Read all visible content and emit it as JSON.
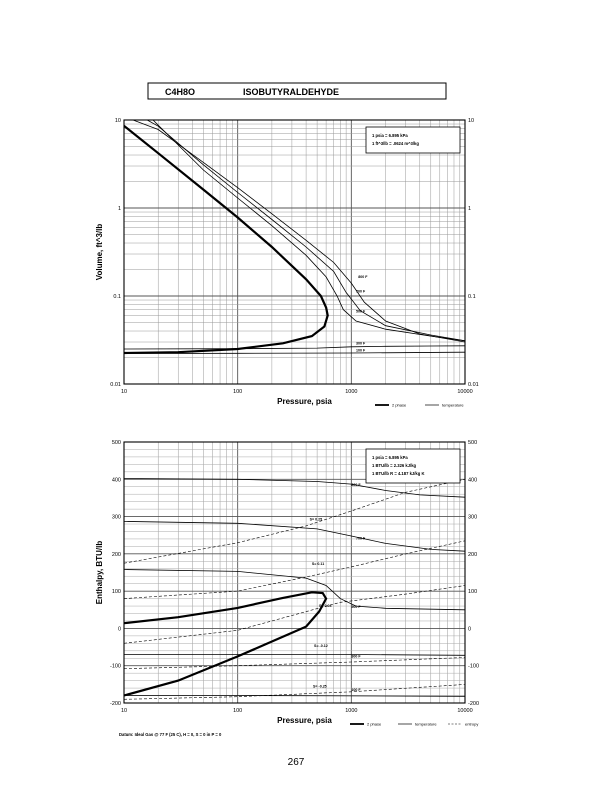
{
  "header": {
    "formula": "C4H8O",
    "name": "ISOBUTYRALDEHYDE"
  },
  "page_number": "267",
  "colors": {
    "ink": "#000000",
    "grid": "#8a8a8a",
    "frame": "#000000"
  },
  "chart_data": [
    {
      "type": "line",
      "xscale": "log",
      "yscale": "log",
      "xlim": [
        10,
        10000
      ],
      "ylim": [
        0.01,
        10
      ],
      "xlabel": "Pressure,  psia",
      "ylabel": "Volume, ft^3/lb",
      "x_ticks": [
        "10",
        "100",
        "1000",
        "10000"
      ],
      "y_ticks": [
        "0.01",
        "0.1",
        "1",
        "10"
      ],
      "note_lines": [
        "1 psia  =  6.895 kPa",
        "1 ft^3/lb  =  .0624 m^3/kg"
      ],
      "legend": [
        "2 phase",
        "temperature"
      ],
      "grid": true,
      "series": [
        {
          "kind": "2 phase",
          "points": [
            [
              10,
              8.6
            ],
            [
              20,
              4.2
            ],
            [
              50,
              1.62
            ],
            [
              100,
              0.78
            ],
            [
              200,
              0.36
            ],
            [
              400,
              0.155
            ],
            [
              540,
              0.1
            ],
            [
              600,
              0.074
            ],
            [
              620,
              0.06
            ],
            [
              580,
              0.045
            ],
            [
              450,
              0.035
            ],
            [
              250,
              0.029
            ],
            [
              100,
              0.025
            ],
            [
              30,
              0.023
            ],
            [
              10,
              0.0225
            ]
          ]
        },
        {
          "kind": "temperature",
          "label": "700 F",
          "points": [
            [
              12,
              10
            ],
            [
              20,
              7.8
            ],
            [
              50,
              3.3
            ],
            [
              100,
              1.7
            ],
            [
              200,
              0.86
            ],
            [
              400,
              0.43
            ],
            [
              700,
              0.24
            ],
            [
              1000,
              0.14
            ],
            [
              1300,
              0.085
            ],
            [
              2000,
              0.052
            ],
            [
              4000,
              0.037
            ],
            [
              10000,
              0.03
            ]
          ]
        },
        {
          "kind": "temperature",
          "label": "600 F",
          "points": [
            [
              16,
              10
            ],
            [
              20,
              8.5
            ],
            [
              50,
              3.1
            ],
            [
              100,
              1.5
            ],
            [
              200,
              0.74
            ],
            [
              400,
              0.36
            ],
            [
              700,
              0.19
            ],
            [
              900,
              0.11
            ],
            [
              1200,
              0.068
            ],
            [
              2000,
              0.046
            ],
            [
              5000,
              0.036
            ],
            [
              10000,
              0.031
            ]
          ]
        },
        {
          "kind": "temperature",
          "label": "500 F",
          "points": [
            [
              18,
              10
            ],
            [
              50,
              2.7
            ],
            [
              100,
              1.3
            ],
            [
              200,
              0.63
            ],
            [
              400,
              0.29
            ],
            [
              600,
              0.165
            ],
            [
              750,
              0.1
            ],
            [
              850,
              0.07
            ],
            [
              1100,
              0.052
            ],
            [
              2000,
              0.042
            ],
            [
              5000,
              0.035
            ],
            [
              10000,
              0.031
            ]
          ]
        },
        {
          "kind": "temperature",
          "label": "300 F",
          "points": [
            [
              10,
              0.025
            ],
            [
              100,
              0.0252
            ],
            [
              500,
              0.0256
            ],
            [
              1000,
              0.0265
            ],
            [
              2000,
              0.0268
            ],
            [
              5000,
              0.027
            ],
            [
              10000,
              0.0272
            ]
          ]
        },
        {
          "kind": "temperature",
          "label": "100 F",
          "points": [
            [
              10,
              0.0222
            ],
            [
              100,
              0.0223
            ],
            [
              1000,
              0.0225
            ],
            [
              10000,
              0.023
            ]
          ]
        }
      ],
      "curve_labels": [
        {
          "text": "800 F",
          "x": 1150,
          "y": 0.16
        },
        {
          "text": "700 F",
          "x": 1100,
          "y": 0.11
        },
        {
          "text": "500 F",
          "x": 1100,
          "y": 0.065
        },
        {
          "text": "300 F",
          "x": 1100,
          "y": 0.028
        },
        {
          "text": "100 F",
          "x": 1100,
          "y": 0.0235
        }
      ]
    },
    {
      "type": "line",
      "xscale": "log",
      "yscale": "linear",
      "xlim": [
        10,
        10000
      ],
      "ylim": [
        -200,
        500
      ],
      "xlabel": "Pressure,  psia",
      "ylabel": "Enthalpy, BTU/lb",
      "x_ticks": [
        "10",
        "100",
        "1000",
        "10000"
      ],
      "y_ticks": [
        "-200",
        "-100",
        "0",
        "100",
        "200",
        "300",
        "400",
        "500"
      ],
      "note_lines": [
        "1 psia  =  6.895 kPa",
        "1 BTU/lb  =  2.326 kJ/kg",
        "1 BTU/lb R  =  4.187 kJ/kg K"
      ],
      "legend": [
        "2 phase",
        "temperature",
        "entropy"
      ],
      "datum": "Datum: Ideal Gas @ 77 F (25 C),  H = 0,  S = 0 in P = 0",
      "grid": true,
      "series": [
        {
          "kind": "2 phase",
          "points": [
            [
              10,
              -180
            ],
            [
              30,
              -140
            ],
            [
              100,
              -75
            ],
            [
              200,
              -35
            ],
            [
              400,
              5
            ],
            [
              520,
              45
            ],
            [
              600,
              80
            ],
            [
              560,
              95
            ],
            [
              450,
              97
            ],
            [
              250,
              82
            ],
            [
              100,
              55
            ],
            [
              30,
              30
            ],
            [
              10,
              14
            ]
          ]
        },
        {
          "kind": "temperature",
          "label": "800 F",
          "points": [
            [
              10,
              402
            ],
            [
              100,
              400
            ],
            [
              500,
              394
            ],
            [
              1000,
              387
            ],
            [
              2000,
              370
            ],
            [
              4000,
              358
            ],
            [
              10000,
              352
            ]
          ]
        },
        {
          "kind": "temperature",
          "label": "700 F",
          "points": [
            [
              10,
              287
            ],
            [
              100,
              282
            ],
            [
              500,
              267
            ],
            [
              1000,
              248
            ],
            [
              2000,
              228
            ],
            [
              5000,
              212
            ],
            [
              10000,
              207
            ]
          ]
        },
        {
          "kind": "temperature",
          "label": "500 F",
          "points": [
            [
              10,
              158
            ],
            [
              100,
              153
            ],
            [
              400,
              135
            ],
            [
              600,
              115
            ],
            [
              800,
              80
            ],
            [
              1100,
              60
            ],
            [
              2000,
              54
            ],
            [
              10000,
              50
            ]
          ]
        },
        {
          "kind": "temperature",
          "label": "300 F",
          "points": [
            [
              10,
              -70
            ],
            [
              100,
              -70
            ],
            [
              1000,
              -70
            ],
            [
              10000,
              -72
            ]
          ]
        },
        {
          "kind": "temperature",
          "label": "100 F",
          "points": [
            [
              10,
              -180
            ],
            [
              100,
              -180
            ],
            [
              1000,
              -181
            ],
            [
              10000,
              -182
            ]
          ]
        },
        {
          "kind": "entropy",
          "label": "S= 0.25",
          "points": [
            [
              10,
              175
            ],
            [
              100,
              230
            ],
            [
              400,
              275
            ],
            [
              1000,
              315
            ],
            [
              3000,
              365
            ],
            [
              10000,
              400
            ]
          ]
        },
        {
          "kind": "entropy",
          "label": "S= 0.11",
          "points": [
            [
              10,
              80
            ],
            [
              100,
              100
            ],
            [
              400,
              138
            ],
            [
              1000,
              165
            ],
            [
              3000,
              200
            ],
            [
              10000,
              235
            ]
          ]
        },
        {
          "kind": "entropy",
          "label": "S= 0.04",
          "points": [
            [
              10,
              -40
            ],
            [
              100,
              -5
            ],
            [
              400,
              45
            ],
            [
              800,
              70
            ],
            [
              3000,
              92
            ],
            [
              10000,
              115
            ]
          ]
        },
        {
          "kind": "entropy",
          "label": "S= -0.12",
          "points": [
            [
              10,
              -108
            ],
            [
              100,
              -100
            ],
            [
              1000,
              -90
            ],
            [
              10000,
              -78
            ]
          ]
        },
        {
          "kind": "entropy",
          "label": "S= -0.25",
          "points": [
            [
              10,
              -190
            ],
            [
              100,
              -183
            ],
            [
              1000,
              -170
            ],
            [
              10000,
              -150
            ]
          ]
        }
      ],
      "curve_labels": [
        {
          "text": "800 F",
          "x": 1000,
          "y": 382
        },
        {
          "text": "700 F",
          "x": 1100,
          "y": 238
        },
        {
          "text": "S= 0.25",
          "x": 430,
          "y": 290
        },
        {
          "text": "S= 0.11",
          "x": 450,
          "y": 170
        },
        {
          "text": "S= 0.04",
          "x": 520,
          "y": 58
        },
        {
          "text": "500 F",
          "x": 1000,
          "y": 55
        },
        {
          "text": "S= -0.12",
          "x": 470,
          "y": -50
        },
        {
          "text": "300 F",
          "x": 1000,
          "y": -78
        },
        {
          "text": "S= -0.25",
          "x": 460,
          "y": -158
        },
        {
          "text": "100 F",
          "x": 1000,
          "y": -168
        }
      ]
    }
  ]
}
